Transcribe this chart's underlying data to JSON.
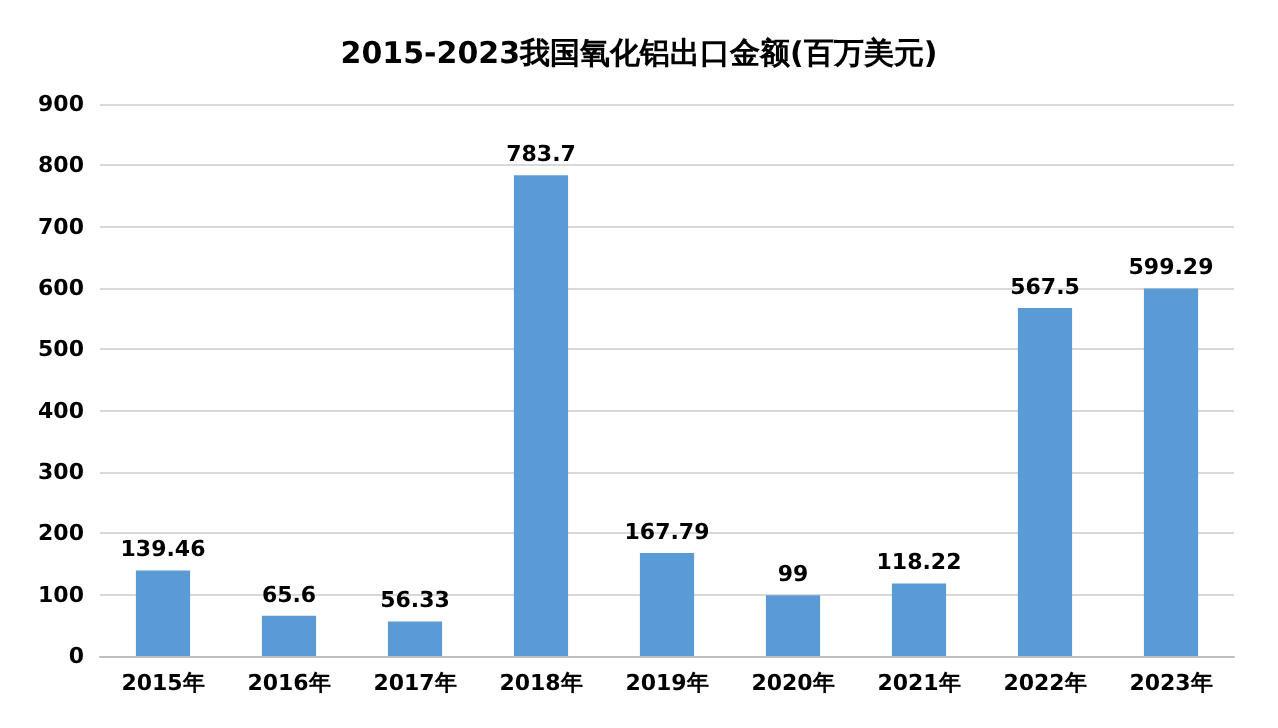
{
  "chart_data": {
    "type": "bar",
    "title": "2015-2023我国氧化铝出口金额(百万美元)",
    "categories": [
      "2015年",
      "2016年",
      "2017年",
      "2018年",
      "2019年",
      "2020年",
      "2021年",
      "2022年",
      "2023年"
    ],
    "values": [
      139.46,
      65.6,
      56.33,
      783.7,
      167.79,
      99,
      118.22,
      567.5,
      599.29
    ],
    "color": "#5b9bd5",
    "ylim": [
      0,
      900
    ],
    "yticks": [
      0,
      100,
      200,
      300,
      400,
      500,
      600,
      700,
      800,
      900
    ],
    "grid": "y",
    "data_labels": true
  }
}
